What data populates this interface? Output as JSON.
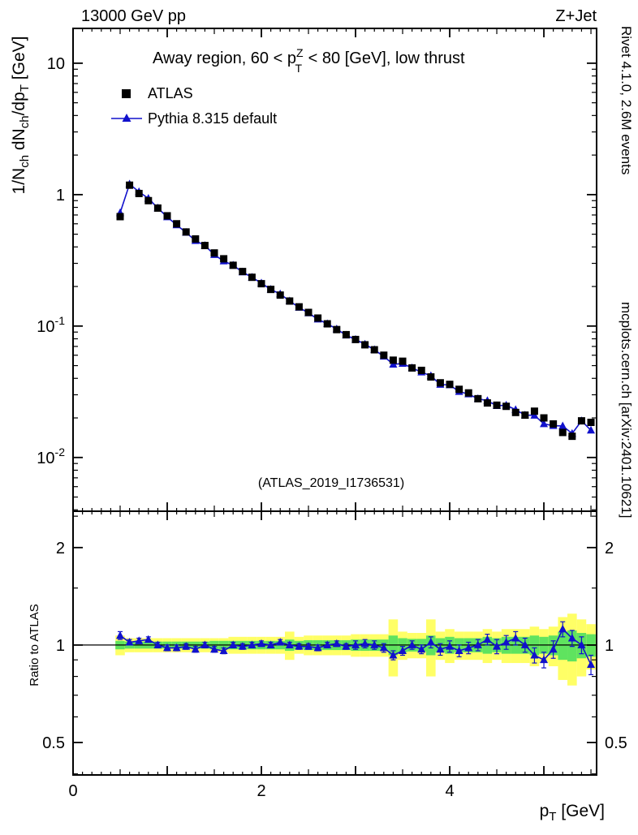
{
  "header": {
    "left": "13000 GeV pp",
    "right": "Z+Jet"
  },
  "panel_title": {
    "pre": "Away region, 60 < p",
    "sup": "Z",
    "sub": "T",
    "post": " < 80 [GeV], low thrust"
  },
  "legend": {
    "items": [
      {
        "label": "ATLAS"
      },
      {
        "label": "Pythia 8.315 default"
      }
    ]
  },
  "watermark": "(ATLAS_2019_I1736531)",
  "side_notes": {
    "top": "Rivet 4.1.0,  2.6M events",
    "bottom": "mcplots.cern.ch [arXiv:2401.10621]"
  },
  "axis_labels": {
    "y_main_parts": [
      [
        "t",
        "1/N"
      ],
      [
        "sub",
        "ch"
      ],
      [
        "t",
        " dN"
      ],
      [
        "sub",
        "ch"
      ],
      [
        "t",
        "/dp"
      ],
      [
        "sub",
        "T"
      ],
      [
        "t",
        " [GeV]"
      ]
    ],
    "y_ratio": "Ratio to ATLAS",
    "x_parts": [
      [
        "t",
        "p"
      ],
      [
        "sub",
        "T"
      ],
      [
        "t",
        " [GeV]"
      ]
    ],
    "x_tick_labels": [
      "0",
      "2",
      "4"
    ],
    "x_tick_values": [
      0,
      2,
      4
    ],
    "y_main_tick_decades": [
      1,
      0,
      -1,
      -2
    ],
    "ratio_tick_labels": [
      "2",
      "1",
      "0.5"
    ],
    "ratio_tick_values": [
      2,
      1,
      0.5
    ]
  },
  "colors": {
    "atlas": "#000000",
    "pythia": "#1111cc",
    "band_yellow": "#ffff66",
    "band_green": "#5fe35f",
    "watermark": "#b9b9b9",
    "side_note": "#9a9a9a"
  },
  "chart_data": {
    "type": "line",
    "title": "Away region, 60 < pT(Z) < 80 [GeV], low thrust",
    "xlabel": "pT [GeV]",
    "ylabel_main": "1/Nch dNch/dpT [GeV]",
    "ylabel_ratio": "Ratio to ATLAS",
    "x_bin_width": 0.1,
    "xlim": [
      0,
      5.56
    ],
    "x": [
      0.5,
      0.6,
      0.7,
      0.8,
      0.9,
      1.0,
      1.1,
      1.2,
      1.3,
      1.4,
      1.5,
      1.6,
      1.7,
      1.8,
      1.9,
      2.0,
      2.1,
      2.2,
      2.3,
      2.4,
      2.5,
      2.6,
      2.7,
      2.8,
      2.9,
      3.0,
      3.1,
      3.2,
      3.3,
      3.4,
      3.5,
      3.6,
      3.7,
      3.8,
      3.9,
      4.0,
      4.1,
      4.2,
      4.3,
      4.4,
      4.5,
      4.6,
      4.7,
      4.8,
      4.9,
      5.0,
      5.1,
      5.2,
      5.3,
      5.4,
      5.5
    ],
    "main": {
      "ylog": true,
      "ylim": [
        0.0039,
        18.4
      ],
      "atlas": [
        0.68,
        1.18,
        1.02,
        0.9,
        0.79,
        0.69,
        0.6,
        0.52,
        0.46,
        0.41,
        0.36,
        0.325,
        0.29,
        0.26,
        0.235,
        0.21,
        0.19,
        0.172,
        0.155,
        0.14,
        0.127,
        0.115,
        0.104,
        0.094,
        0.086,
        0.079,
        0.072,
        0.066,
        0.06,
        0.055,
        0.054,
        0.048,
        0.046,
        0.041,
        0.037,
        0.036,
        0.033,
        0.031,
        0.028,
        0.026,
        0.025,
        0.0245,
        0.022,
        0.021,
        0.0225,
        0.02,
        0.018,
        0.0155,
        0.0145,
        0.019,
        0.0185
      ],
      "atlas_rel_err": 0.03
    },
    "ratio": {
      "ylog": true,
      "ylim": [
        0.397,
        2.59
      ],
      "values": [
        1.07,
        1.02,
        1.03,
        1.04,
        1.0,
        0.98,
        0.98,
        0.99,
        0.97,
        1.0,
        0.97,
        0.96,
        1.0,
        0.99,
        1.0,
        1.01,
        1.0,
        1.02,
        1.0,
        0.99,
        0.99,
        0.98,
        1.0,
        1.01,
        0.99,
        1.0,
        1.01,
        1.0,
        0.98,
        0.93,
        0.96,
        1.0,
        0.97,
        1.02,
        0.97,
        0.99,
        0.96,
        0.98,
        1.0,
        1.04,
        0.99,
        1.02,
        1.05,
        1.0,
        0.93,
        0.9,
        0.97,
        1.12,
        1.05,
        1.0,
        0.87
      ],
      "err": [
        0.03,
        0.02,
        0.02,
        0.02,
        0.02,
        0.02,
        0.02,
        0.02,
        0.02,
        0.02,
        0.02,
        0.02,
        0.02,
        0.02,
        0.02,
        0.02,
        0.02,
        0.02,
        0.02,
        0.02,
        0.02,
        0.02,
        0.02,
        0.02,
        0.02,
        0.03,
        0.03,
        0.03,
        0.03,
        0.03,
        0.03,
        0.03,
        0.03,
        0.04,
        0.04,
        0.04,
        0.04,
        0.04,
        0.04,
        0.04,
        0.05,
        0.05,
        0.05,
        0.05,
        0.05,
        0.05,
        0.06,
        0.06,
        0.06,
        0.06,
        0.06
      ],
      "band_yellow": [
        0.07,
        0.05,
        0.05,
        0.05,
        0.05,
        0.05,
        0.05,
        0.05,
        0.05,
        0.05,
        0.05,
        0.05,
        0.06,
        0.06,
        0.06,
        0.06,
        0.06,
        0.06,
        0.1,
        0.06,
        0.07,
        0.07,
        0.07,
        0.07,
        0.07,
        0.08,
        0.08,
        0.08,
        0.08,
        0.2,
        0.1,
        0.09,
        0.09,
        0.2,
        0.1,
        0.12,
        0.1,
        0.1,
        0.1,
        0.12,
        0.1,
        0.12,
        0.12,
        0.12,
        0.14,
        0.12,
        0.14,
        0.22,
        0.25,
        0.2,
        0.16
      ],
      "band_green": [
        0.03,
        0.025,
        0.025,
        0.025,
        0.025,
        0.025,
        0.025,
        0.025,
        0.025,
        0.025,
        0.03,
        0.03,
        0.03,
        0.03,
        0.03,
        0.03,
        0.03,
        0.03,
        0.04,
        0.03,
        0.035,
        0.035,
        0.035,
        0.035,
        0.035,
        0.04,
        0.04,
        0.04,
        0.04,
        0.07,
        0.05,
        0.045,
        0.045,
        0.07,
        0.05,
        0.06,
        0.05,
        0.05,
        0.05,
        0.06,
        0.05,
        0.06,
        0.06,
        0.06,
        0.07,
        0.06,
        0.07,
        0.1,
        0.11,
        0.09,
        0.08
      ]
    }
  }
}
